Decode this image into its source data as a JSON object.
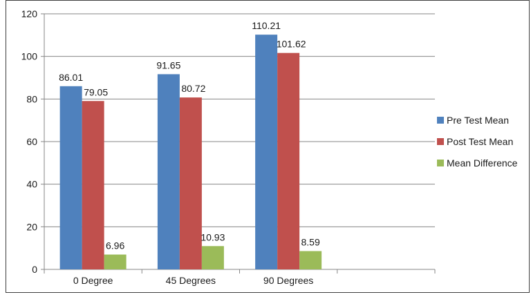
{
  "chart_data": {
    "type": "bar",
    "title": "",
    "xlabel": "",
    "ylabel": "",
    "ylim": [
      0,
      120
    ],
    "yticks": [
      0,
      20,
      40,
      60,
      80,
      100,
      120
    ],
    "grid": true,
    "legend_position": "right",
    "categories": [
      "0 Degree",
      "45 Degrees",
      "90 Degrees",
      ""
    ],
    "series": [
      {
        "name": "Pre Test Mean",
        "color": "#4f81bd",
        "values": [
          86.01,
          91.65,
          110.21,
          null
        ]
      },
      {
        "name": "Post Test Mean",
        "color": "#c0504d",
        "values": [
          79.05,
          80.72,
          101.62,
          null
        ]
      },
      {
        "name": "Mean Difference",
        "color": "#9bbb59",
        "values": [
          6.96,
          10.93,
          8.59,
          null
        ]
      }
    ]
  }
}
